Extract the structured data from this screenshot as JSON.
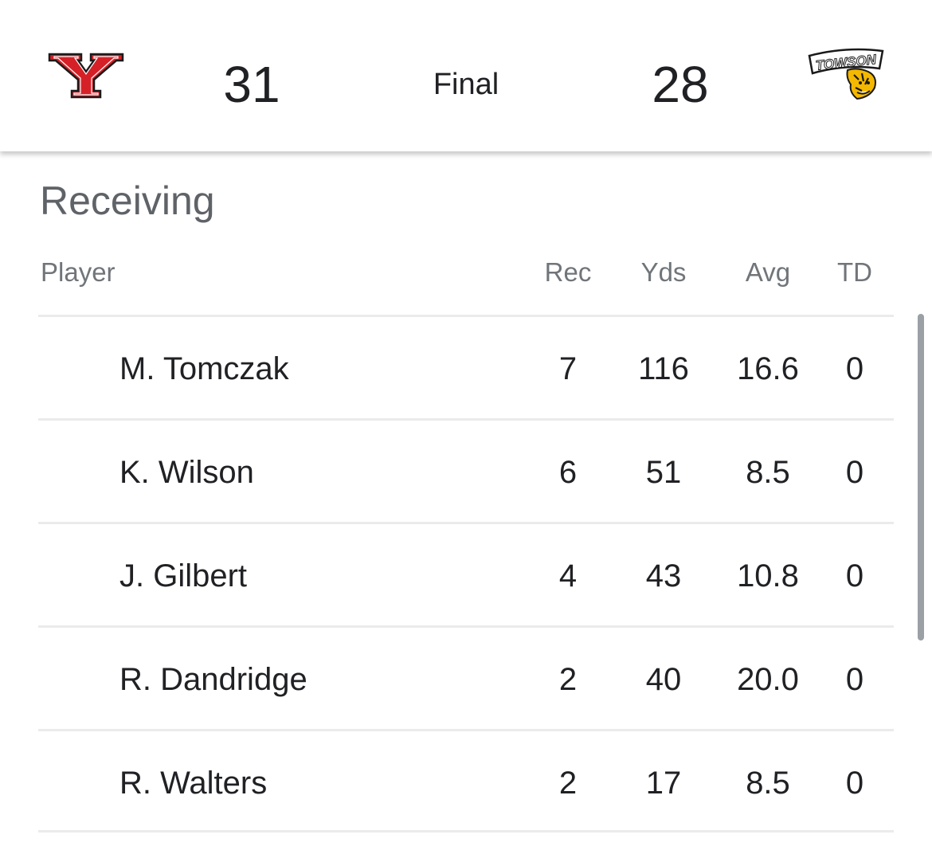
{
  "scoreboard": {
    "home_team": {
      "score": "31",
      "logo_icon": "ysu-y-logo-icon",
      "logo_color": "#d62027"
    },
    "status": "Final",
    "away_team": {
      "score": "28",
      "logo_icon": "towson-tigers-logo-icon",
      "logo_color": "#f5b800",
      "logo_text": "TOWSON"
    }
  },
  "receiving": {
    "title": "Receiving",
    "columns": {
      "player": "Player",
      "rec": "Rec",
      "yds": "Yds",
      "avg": "Avg",
      "td": "TD"
    },
    "rows": [
      {
        "player": "M. Tomczak",
        "rec": "7",
        "yds": "116",
        "avg": "16.6",
        "td": "0"
      },
      {
        "player": "K. Wilson",
        "rec": "6",
        "yds": "51",
        "avg": "8.5",
        "td": "0"
      },
      {
        "player": "J. Gilbert",
        "rec": "4",
        "yds": "43",
        "avg": "10.8",
        "td": "0"
      },
      {
        "player": "R. Dandridge",
        "rec": "2",
        "yds": "40",
        "avg": "20.0",
        "td": "0"
      },
      {
        "player": "R. Walters",
        "rec": "2",
        "yds": "17",
        "avg": "8.5",
        "td": "0"
      }
    ]
  }
}
